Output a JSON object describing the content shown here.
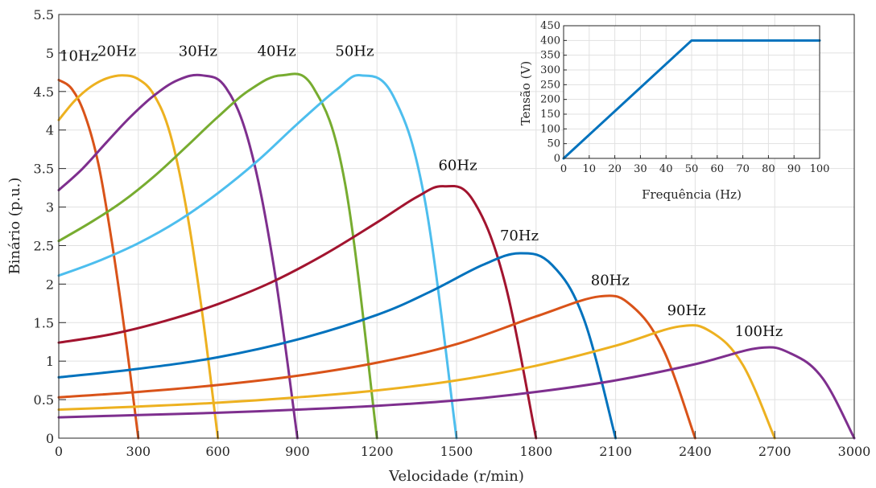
{
  "chart_data": [
    {
      "type": "line",
      "xlabel": "Velocidade (r/min)",
      "ylabel": "Binário (p.u.)",
      "xlim": [
        0,
        3000
      ],
      "ylim": [
        0,
        5.5
      ],
      "xticks": [
        0,
        300,
        600,
        900,
        1200,
        1500,
        1800,
        2100,
        2400,
        2700,
        3000
      ],
      "yticks": [
        0,
        0.5,
        1,
        1.5,
        2,
        2.5,
        3,
        3.5,
        4,
        4.5,
        5,
        5.5
      ],
      "grid": true,
      "series": [
        {
          "name": "10Hz",
          "color": "#D95319",
          "sync": 300,
          "x": [
            0,
            50,
            100,
            150,
            200,
            250,
            300
          ],
          "y": [
            4.65,
            4.53,
            4.18,
            3.55,
            2.55,
            1.35,
            0
          ]
        },
        {
          "name": "20Hz",
          "color": "#EDB120",
          "sync": 600,
          "x": [
            0,
            60,
            120,
            180,
            240,
            300,
            360,
            420,
            480,
            540,
            600
          ],
          "y": [
            4.13,
            4.38,
            4.56,
            4.67,
            4.71,
            4.66,
            4.45,
            3.95,
            3.0,
            1.65,
            0
          ]
        },
        {
          "name": "30Hz",
          "color": "#7E2F8E",
          "sync": 900,
          "x": [
            0,
            90,
            180,
            270,
            360,
            450,
            540,
            630,
            720,
            810,
            900
          ],
          "y": [
            3.22,
            3.5,
            3.84,
            4.17,
            4.45,
            4.65,
            4.71,
            4.55,
            3.8,
            2.25,
            0
          ]
        },
        {
          "name": "40Hz",
          "color": "#77AC30",
          "sync": 1200,
          "x": [
            0,
            120,
            240,
            360,
            480,
            600,
            720,
            840,
            960,
            1080,
            1200
          ],
          "y": [
            2.56,
            2.8,
            3.07,
            3.4,
            3.78,
            4.17,
            4.52,
            4.71,
            4.55,
            3.3,
            0
          ]
        },
        {
          "name": "50Hz",
          "color": "#4DBEEE",
          "sync": 1500,
          "x": [
            0,
            150,
            300,
            450,
            600,
            750,
            900,
            1050,
            1140,
            1260,
            1380,
            1500
          ],
          "y": [
            2.11,
            2.3,
            2.53,
            2.82,
            3.18,
            3.6,
            4.08,
            4.53,
            4.71,
            4.45,
            3.1,
            0
          ]
        },
        {
          "name": "60Hz",
          "color": "#A2142F",
          "sync": 1800,
          "x": [
            0,
            200,
            400,
            600,
            800,
            1000,
            1200,
            1350,
            1450,
            1560,
            1680,
            1800
          ],
          "y": [
            1.24,
            1.35,
            1.52,
            1.74,
            2.02,
            2.38,
            2.8,
            3.13,
            3.27,
            3.1,
            2.05,
            0
          ]
        },
        {
          "name": "70Hz",
          "color": "#0072BD",
          "sync": 2100,
          "x": [
            0,
            300,
            600,
            900,
            1200,
            1400,
            1600,
            1740,
            1860,
            1980,
            2100
          ],
          "y": [
            0.79,
            0.9,
            1.05,
            1.28,
            1.6,
            1.9,
            2.25,
            2.4,
            2.25,
            1.55,
            0
          ]
        },
        {
          "name": "80Hz",
          "color": "#D95319",
          "sync": 2400,
          "x": [
            0,
            300,
            600,
            900,
            1200,
            1500,
            1800,
            2040,
            2160,
            2280,
            2400
          ],
          "y": [
            0.53,
            0.6,
            0.69,
            0.81,
            0.98,
            1.22,
            1.58,
            1.84,
            1.72,
            1.15,
            0
          ]
        },
        {
          "name": "90Hz",
          "color": "#EDB120",
          "sync": 2700,
          "x": [
            0,
            300,
            600,
            900,
            1200,
            1500,
            1800,
            2100,
            2340,
            2460,
            2580,
            2700
          ],
          "y": [
            0.37,
            0.41,
            0.46,
            0.53,
            0.62,
            0.75,
            0.94,
            1.2,
            1.45,
            1.38,
            0.95,
            0
          ]
        },
        {
          "name": "100Hz",
          "color": "#7E2F8E",
          "sync": 3000,
          "x": [
            0,
            300,
            600,
            900,
            1200,
            1500,
            1800,
            2100,
            2400,
            2640,
            2760,
            2880,
            3000
          ],
          "y": [
            0.27,
            0.3,
            0.33,
            0.37,
            0.42,
            0.49,
            0.6,
            0.75,
            0.96,
            1.17,
            1.1,
            0.78,
            0
          ]
        }
      ]
    },
    {
      "type": "line",
      "xlabel": "Frequência (Hz)",
      "ylabel": "Tensão (V)",
      "xlim": [
        0,
        100
      ],
      "ylim": [
        0,
        450
      ],
      "xticks": [
        0,
        10,
        20,
        30,
        40,
        50,
        60,
        70,
        80,
        90,
        100
      ],
      "yticks": [
        0,
        50,
        100,
        150,
        200,
        250,
        300,
        350,
        400,
        450
      ],
      "grid": true,
      "series": [
        {
          "color": "#0072BD",
          "x": [
            0,
            50,
            100
          ],
          "y": [
            0,
            400,
            400
          ]
        }
      ]
    }
  ]
}
